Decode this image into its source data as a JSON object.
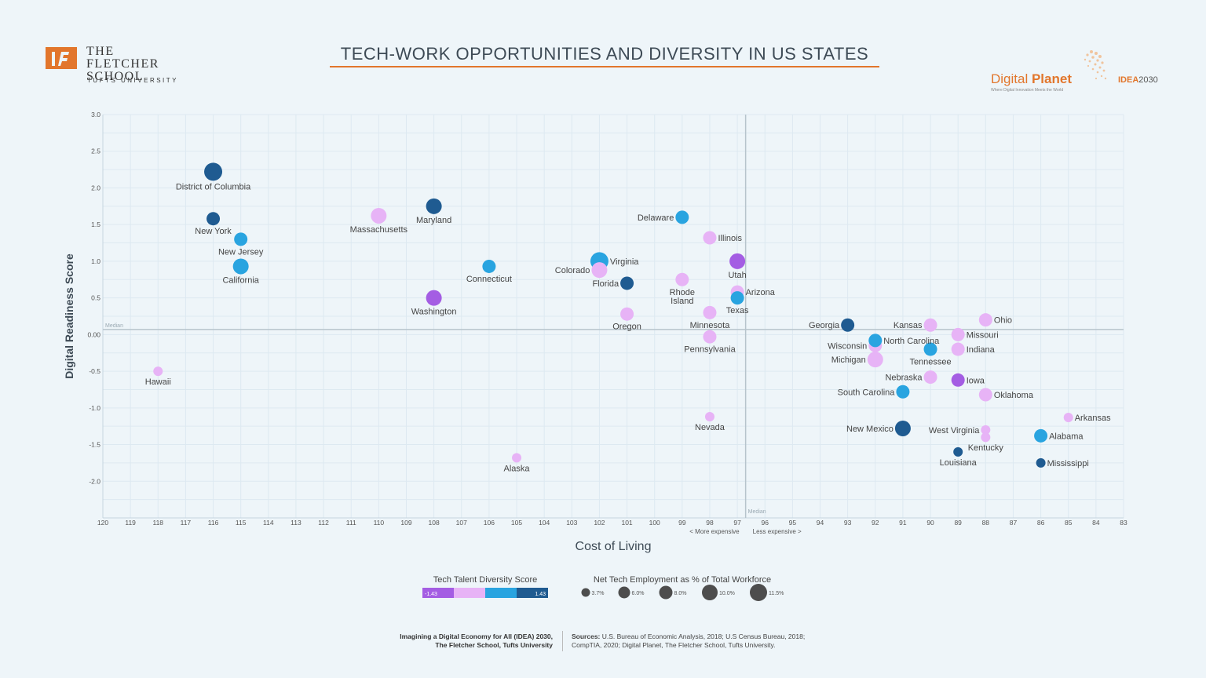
{
  "header": {
    "school_name": "THE FLETCHER SCHOOL",
    "school_sub": "TUFTS UNIVERSITY",
    "title": "TECH-WORK OPPORTUNITIES AND DIVERSITY IN US STATES",
    "brand_name_light": "Digital ",
    "brand_name_bold": "Planet",
    "brand_tagline": "Where Digital Innovation Meets the World",
    "idea_label": "IDEA",
    "idea_year": "2030"
  },
  "footer": {
    "left_line1": "Imagining a Digital Economy for All (IDEA) 2030,",
    "left_line2": "The Fletcher School, Tufts University",
    "sources_label": "Sources:",
    "sources_line1": "U.S. Bureau of Economic Analysis, 2018; U.S Census Bureau, 2018;",
    "sources_line2": "CompTIA, 2020; Digital Planet, The Fletcher School, Tufts University."
  },
  "colors": {
    "accent": "#e2762c",
    "c1": "#a45de3",
    "c2": "#e7b3f6",
    "c3": "#29a4e0",
    "c4": "#1f5b91"
  },
  "chart_data": {
    "type": "scatter",
    "xlabel": "Cost of Living",
    "ylabel": "Digital Readiness Score",
    "x_reversed": true,
    "xlim": [
      120,
      83
    ],
    "ylim": [
      -2.5,
      3.0
    ],
    "x_ticks": [
      120,
      119,
      118,
      117,
      116,
      115,
      114,
      113,
      112,
      111,
      110,
      109,
      108,
      107,
      106,
      105,
      104,
      103,
      102,
      101,
      100,
      99,
      98,
      97,
      96,
      95,
      94,
      93,
      92,
      91,
      90,
      89,
      88,
      87,
      86,
      85,
      84,
      83
    ],
    "y_ticks": [
      {
        "v": 3.0,
        "label": "3.0"
      },
      {
        "v": 2.5,
        "label": "2.5"
      },
      {
        "v": 2.0,
        "label": "2.0"
      },
      {
        "v": 1.5,
        "label": "1.5"
      },
      {
        "v": 1.0,
        "label": "1.0"
      },
      {
        "v": 0.5,
        "label": "0.5"
      },
      {
        "v": 0.0,
        "label": "0.00"
      },
      {
        "v": -0.5,
        "label": "-0.5"
      },
      {
        "v": -1.0,
        "label": "-1.0"
      },
      {
        "v": -1.5,
        "label": "-1.5"
      },
      {
        "v": -2.0,
        "label": "-2.0"
      }
    ],
    "median_x": 96.7,
    "median_y": 0.07,
    "median_label": "Median",
    "x_note_left": "< More expensive",
    "x_note_right": "Less expensive >",
    "grid": true,
    "points": [
      {
        "name": "District of Columbia",
        "x": 116,
        "y": 2.22,
        "d": 4,
        "s": 4
      },
      {
        "name": "New York",
        "x": 116,
        "y": 1.58,
        "d": 4,
        "s": 2
      },
      {
        "name": "New Jersey",
        "x": 115,
        "y": 1.3,
        "d": 3,
        "s": 2
      },
      {
        "name": "California",
        "x": 115,
        "y": 0.93,
        "d": 3,
        "s": 3
      },
      {
        "name": "Massachusetts",
        "x": 110,
        "y": 1.62,
        "d": 2,
        "s": 3
      },
      {
        "name": "Maryland",
        "x": 108,
        "y": 1.75,
        "d": 4,
        "s": 3
      },
      {
        "name": "Washington",
        "x": 108,
        "y": 0.5,
        "d": 1,
        "s": 3
      },
      {
        "name": "Connecticut",
        "x": 106,
        "y": 0.93,
        "d": 3,
        "s": 2
      },
      {
        "name": "Hawaii",
        "x": 118,
        "y": -0.5,
        "d": 2,
        "s": 1
      },
      {
        "name": "Alaska",
        "x": 105,
        "y": -1.68,
        "d": 2,
        "s": 1
      },
      {
        "name": "Virginia",
        "x": 102,
        "y": 1.0,
        "d": 3,
        "s": 4
      },
      {
        "name": "Colorado",
        "x": 102,
        "y": 0.88,
        "d": 2,
        "s": 3
      },
      {
        "name": "Florida",
        "x": 101,
        "y": 0.7,
        "d": 4,
        "s": 2
      },
      {
        "name": "Oregon",
        "x": 101,
        "y": 0.28,
        "d": 2,
        "s": 2
      },
      {
        "name": "Delaware",
        "x": 99,
        "y": 1.6,
        "d": 3,
        "s": 2
      },
      {
        "name": "Illinois",
        "x": 98,
        "y": 1.32,
        "d": 2,
        "s": 2
      },
      {
        "name": "Rhode Island",
        "x": 99,
        "y": 0.75,
        "d": 2,
        "s": 2
      },
      {
        "name": "Utah",
        "x": 97,
        "y": 1.0,
        "d": 1,
        "s": 3
      },
      {
        "name": "Arizona",
        "x": 97,
        "y": 0.58,
        "d": 2,
        "s": 2
      },
      {
        "name": "Texas",
        "x": 97,
        "y": 0.5,
        "d": 3,
        "s": 2
      },
      {
        "name": "Minnesota",
        "x": 98,
        "y": 0.3,
        "d": 2,
        "s": 2
      },
      {
        "name": "Pennsylvania",
        "x": 98,
        "y": -0.03,
        "d": 2,
        "s": 2
      },
      {
        "name": "Nevada",
        "x": 98,
        "y": -1.12,
        "d": 2,
        "s": 1
      },
      {
        "name": "Georgia",
        "x": 93,
        "y": 0.13,
        "d": 4,
        "s": 2
      },
      {
        "name": "Kansas",
        "x": 90,
        "y": 0.13,
        "d": 2,
        "s": 2
      },
      {
        "name": "Ohio",
        "x": 88,
        "y": 0.2,
        "d": 2,
        "s": 2
      },
      {
        "name": "Missouri",
        "x": 89,
        "y": 0.0,
        "d": 2,
        "s": 2
      },
      {
        "name": "Wisconsin",
        "x": 92,
        "y": -0.15,
        "d": 2,
        "s": 2
      },
      {
        "name": "North Carolina",
        "x": 92,
        "y": -0.08,
        "d": 3,
        "s": 2
      },
      {
        "name": "Indiana",
        "x": 89,
        "y": -0.2,
        "d": 2,
        "s": 2
      },
      {
        "name": "Tennessee",
        "x": 90,
        "y": -0.2,
        "d": 3,
        "s": 2
      },
      {
        "name": "Michigan",
        "x": 92,
        "y": -0.34,
        "d": 2,
        "s": 3
      },
      {
        "name": "Nebraska",
        "x": 90,
        "y": -0.58,
        "d": 2,
        "s": 2
      },
      {
        "name": "Iowa",
        "x": 89,
        "y": -0.62,
        "d": 1,
        "s": 2
      },
      {
        "name": "South Carolina",
        "x": 91,
        "y": -0.78,
        "d": 3,
        "s": 2
      },
      {
        "name": "Oklahoma",
        "x": 88,
        "y": -0.82,
        "d": 2,
        "s": 2
      },
      {
        "name": "Arkansas",
        "x": 85,
        "y": -1.13,
        "d": 2,
        "s": 1
      },
      {
        "name": "New Mexico",
        "x": 91,
        "y": -1.28,
        "d": 4,
        "s": 3
      },
      {
        "name": "West Virginia",
        "x": 88,
        "y": -1.3,
        "d": 2,
        "s": 1
      },
      {
        "name": "Kentucky",
        "x": 88,
        "y": -1.4,
        "d": 2,
        "s": 1
      },
      {
        "name": "Alabama",
        "x": 86,
        "y": -1.38,
        "d": 3,
        "s": 2
      },
      {
        "name": "Louisiana",
        "x": 89,
        "y": -1.6,
        "d": 4,
        "s": 1
      },
      {
        "name": "Mississippi",
        "x": 86,
        "y": -1.75,
        "d": 4,
        "s": 1
      }
    ],
    "legend_color": {
      "title": "Tech Talent Diversity Score",
      "min_label": "-1.43",
      "max_label": "1.43"
    },
    "legend_size": {
      "title": "Net Tech Employment as % of Total Workforce",
      "items": [
        "3.7%",
        "6.0%",
        "8.0%",
        "10.0%",
        "11.5%"
      ]
    }
  }
}
